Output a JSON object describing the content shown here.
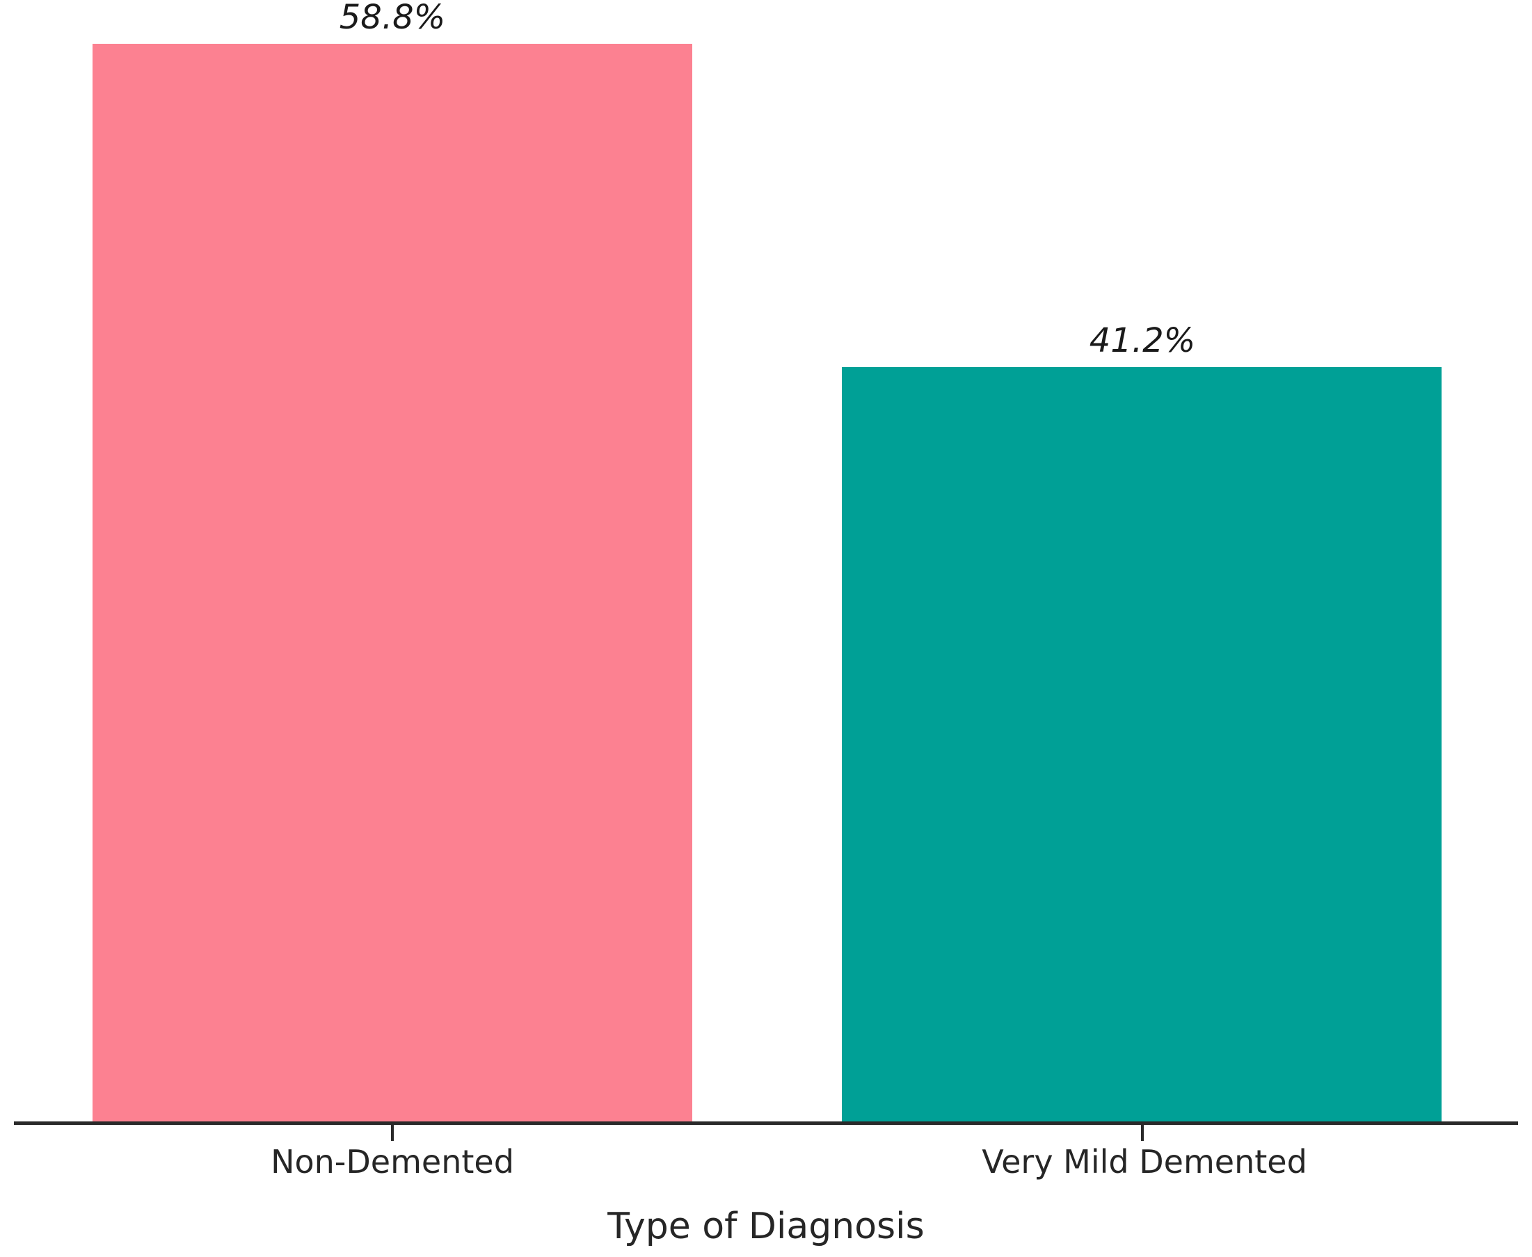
{
  "figure": {
    "background": "#ffffff",
    "axis_color": "#2a2a2a",
    "text_color": "#262626"
  },
  "chart_data": {
    "type": "bar",
    "title": "",
    "xlabel": "Type of Diagnosis",
    "ylabel": "",
    "categories": [
      "Non-Demented",
      "Very Mild Demented"
    ],
    "values": [
      58.8,
      41.2
    ],
    "value_labels": [
      "58.8%",
      "41.2%"
    ],
    "colors": [
      "#FC8191",
      "#00A096"
    ],
    "ylim": [
      0,
      61.2
    ],
    "bar_width_fraction": 0.8,
    "grid": false,
    "legend": "none",
    "y_axis_visible": false,
    "value_label_style": "italic"
  }
}
